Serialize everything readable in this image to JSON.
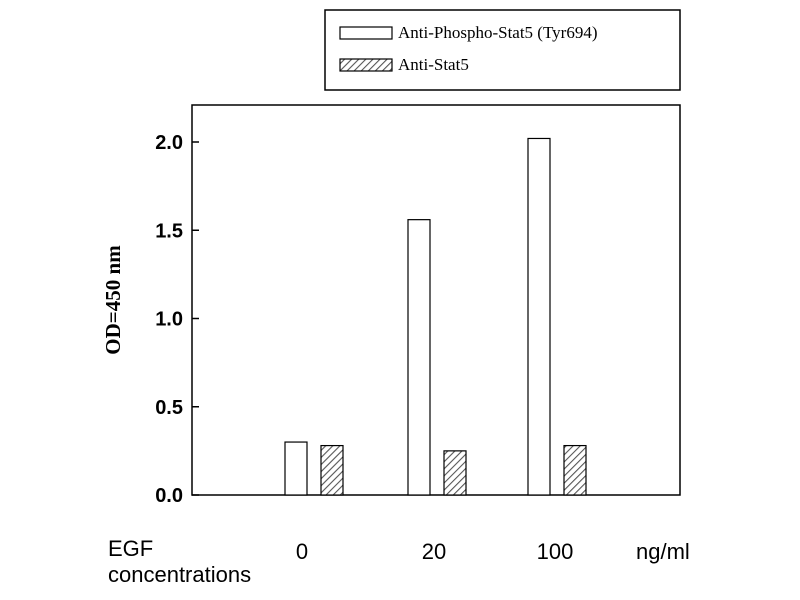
{
  "chart_data": {
    "type": "bar",
    "categories": [
      "0",
      "20",
      "100"
    ],
    "series": [
      {
        "name": "Anti-Phospho-Stat5 (Tyr694)",
        "values": [
          0.3,
          1.56,
          2.02
        ],
        "fill": "open"
      },
      {
        "name": "Anti-Stat5",
        "values": [
          0.28,
          0.25,
          0.28
        ],
        "fill": "hatched"
      }
    ],
    "ylabel": "OD=450 nm",
    "xlabel": "EGF concentrations",
    "x_unit": "ng/ml",
    "ylim": [
      0,
      2.2
    ],
    "yticks": [
      "0.0",
      "0.5",
      "1.0",
      "1.5",
      "2.0"
    ],
    "ytick_values": [
      0,
      0.5,
      1.0,
      1.5,
      2.0
    ],
    "grid": false,
    "legend_position": "top-right, outside plot"
  },
  "colors": {
    "axis": "#000000",
    "bar_outline": "#000000",
    "bar_fill_open": "#ffffff",
    "hatch": "#555555"
  }
}
